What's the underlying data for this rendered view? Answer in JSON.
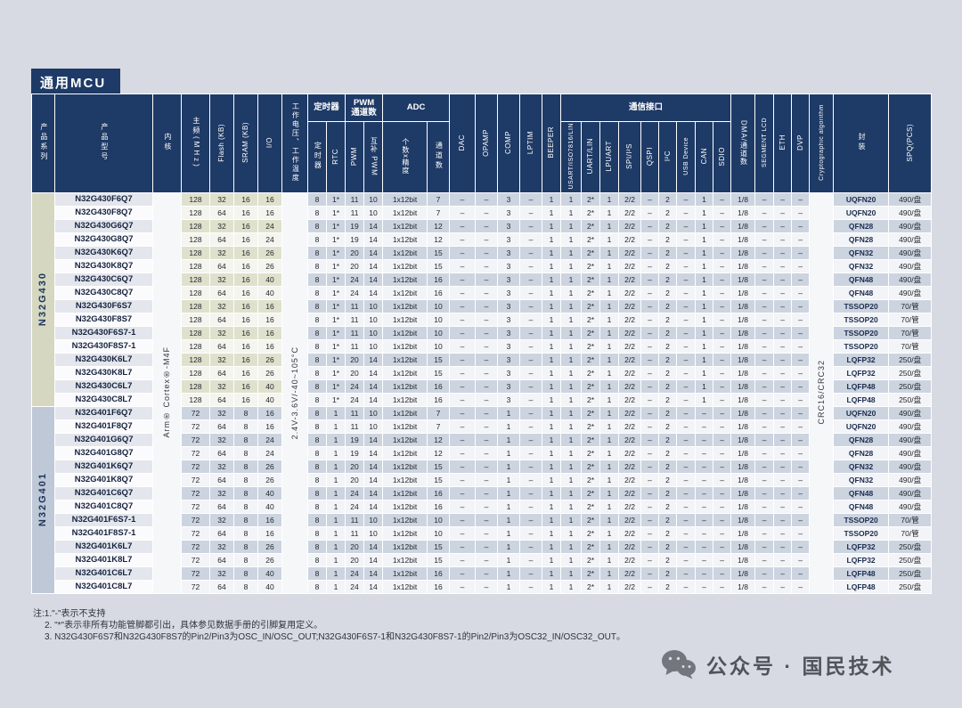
{
  "page": {
    "title": "通用MCU",
    "accent": "#1e3a66",
    "background": "#d7dae3"
  },
  "cols": {
    "series": "产品系列",
    "model": "产品型号",
    "core": "内核",
    "freq": "主频(MHz)",
    "flash": "Flash (KB)",
    "sram": "SRAM (KB)",
    "io": "I/O",
    "voltage": "工作电压、工作温度",
    "timer_group": "定时器",
    "timer": "定时器",
    "rtc": "RTC",
    "pwm_group": "PWM\n通道数",
    "pwm": "PWM",
    "cpwm": "互补 PWM",
    "adc_group": "ADC",
    "adc_res": "个数x精度",
    "adc_ch": "通道数",
    "dac": "DAC",
    "opamp": "OPAMP",
    "comp": "COMP",
    "lptim": "LPTIM",
    "beeper": "BEEPER",
    "comm_group": "通信接口",
    "usart": "USART/ISO7816/LIN",
    "uart": "UART/LIN",
    "lpuart": "LPUART",
    "spi": "SPI/I²S",
    "qspi": "QSPI",
    "i2c": "I²C",
    "usb": "USB Device",
    "can": "CAN",
    "sdio": "SDIO",
    "dma": "DMA/通道数",
    "seg_lcd": "SEGMENT LCD",
    "eth": "ETH",
    "dvp": "DVP",
    "crypto": "Cryptographic algorithm",
    "pkg": "封装",
    "spq": "SPQ(PCS)"
  },
  "merged": {
    "core": "Arm® Cortex®-M4F",
    "voltage": "2.4V-3.6V/-40~105°C",
    "crypto": "CRC16/CRC32"
  },
  "series": [
    {
      "name": "N32G430",
      "common": {
        "freq": "128",
        "sram": "16",
        "timer": "8",
        "rtc": "1*",
        "adc": "1x12bit",
        "dac": "–",
        "opamp": "–",
        "comp": "3",
        "lptim": "–",
        "beeper": "1",
        "usart": "1",
        "uart": "2*",
        "lpuart": "1",
        "spi": "2/2",
        "qspi": "–",
        "i2c": "2",
        "usb": "–",
        "can": "1",
        "sdio": "–",
        "dma": "1/8",
        "lcd": "–",
        "eth": "–",
        "dvp": "–"
      },
      "rows": [
        {
          "model": "N32G430F6Q7",
          "flash": "32",
          "io": "16",
          "pwm": "11",
          "cpwm": "10",
          "adc_ch": "7",
          "pkg": "UQFN20",
          "spq": "490/盘"
        },
        {
          "model": "N32G430F8Q7",
          "flash": "64",
          "io": "16",
          "pwm": "11",
          "cpwm": "10",
          "adc_ch": "7",
          "pkg": "UQFN20",
          "spq": "490/盘"
        },
        {
          "model": "N32G430G6Q7",
          "flash": "32",
          "io": "24",
          "pwm": "19",
          "cpwm": "14",
          "adc_ch": "12",
          "pkg": "QFN28",
          "spq": "490/盘"
        },
        {
          "model": "N32G430G8Q7",
          "flash": "64",
          "io": "24",
          "pwm": "19",
          "cpwm": "14",
          "adc_ch": "12",
          "pkg": "QFN28",
          "spq": "490/盘"
        },
        {
          "model": "N32G430K6Q7",
          "flash": "32",
          "io": "26",
          "pwm": "20",
          "cpwm": "14",
          "adc_ch": "15",
          "pkg": "QFN32",
          "spq": "490/盘"
        },
        {
          "model": "N32G430K8Q7",
          "flash": "64",
          "io": "26",
          "pwm": "20",
          "cpwm": "14",
          "adc_ch": "15",
          "pkg": "QFN32",
          "spq": "490/盘"
        },
        {
          "model": "N32G430C6Q7",
          "flash": "32",
          "io": "40",
          "pwm": "24",
          "cpwm": "14",
          "adc_ch": "16",
          "pkg": "QFN48",
          "spq": "490/盘"
        },
        {
          "model": "N32G430C8Q7",
          "flash": "64",
          "io": "40",
          "pwm": "24",
          "cpwm": "14",
          "adc_ch": "16",
          "pkg": "QFN48",
          "spq": "490/盘"
        },
        {
          "model": "N32G430F6S7",
          "flash": "32",
          "io": "16",
          "pwm": "11",
          "cpwm": "10",
          "adc_ch": "10",
          "pkg": "TSSOP20",
          "spq": "70/管"
        },
        {
          "model": "N32G430F8S7",
          "flash": "64",
          "io": "16",
          "pwm": "11",
          "cpwm": "10",
          "adc_ch": "10",
          "pkg": "TSSOP20",
          "spq": "70/管"
        },
        {
          "model": "N32G430F6S7-1",
          "flash": "32",
          "io": "16",
          "pwm": "11",
          "cpwm": "10",
          "adc_ch": "10",
          "pkg": "TSSOP20",
          "spq": "70/管"
        },
        {
          "model": "N32G430F8S7-1",
          "flash": "64",
          "io": "16",
          "pwm": "11",
          "cpwm": "10",
          "adc_ch": "10",
          "pkg": "TSSOP20",
          "spq": "70/管"
        },
        {
          "model": "N32G430K6L7",
          "flash": "32",
          "io": "26",
          "pwm": "20",
          "cpwm": "14",
          "adc_ch": "15",
          "pkg": "LQFP32",
          "spq": "250/盘"
        },
        {
          "model": "N32G430K8L7",
          "flash": "64",
          "io": "26",
          "pwm": "20",
          "cpwm": "14",
          "adc_ch": "15",
          "pkg": "LQFP32",
          "spq": "250/盘"
        },
        {
          "model": "N32G430C6L7",
          "flash": "32",
          "io": "40",
          "pwm": "24",
          "cpwm": "14",
          "adc_ch": "16",
          "pkg": "LQFP48",
          "spq": "250/盘"
        },
        {
          "model": "N32G430C8L7",
          "flash": "64",
          "io": "40",
          "pwm": "24",
          "cpwm": "14",
          "adc_ch": "16",
          "pkg": "LQFP48",
          "spq": "250/盘"
        }
      ]
    },
    {
      "name": "N32G401",
      "common": {
        "freq": "72",
        "sram": "8",
        "timer": "8",
        "rtc": "1",
        "adc": "1x12bit",
        "dac": "–",
        "opamp": "–",
        "comp": "1",
        "lptim": "–",
        "beeper": "1",
        "usart": "1",
        "uart": "2*",
        "lpuart": "1",
        "spi": "2/2",
        "qspi": "–",
        "i2c": "2",
        "usb": "–",
        "can": "–",
        "sdio": "–",
        "dma": "1/8",
        "lcd": "–",
        "eth": "–",
        "dvp": "–"
      },
      "rows": [
        {
          "model": "N32G401F6Q7",
          "flash": "32",
          "io": "16",
          "pwm": "11",
          "cpwm": "10",
          "adc_ch": "7",
          "pkg": "UQFN20",
          "spq": "490/盘"
        },
        {
          "model": "N32G401F8Q7",
          "flash": "64",
          "io": "16",
          "pwm": "11",
          "cpwm": "10",
          "adc_ch": "7",
          "pkg": "UQFN20",
          "spq": "490/盘"
        },
        {
          "model": "N32G401G6Q7",
          "flash": "32",
          "io": "24",
          "pwm": "19",
          "cpwm": "14",
          "adc_ch": "12",
          "pkg": "QFN28",
          "spq": "490/盘"
        },
        {
          "model": "N32G401G8Q7",
          "flash": "64",
          "io": "24",
          "pwm": "19",
          "cpwm": "14",
          "adc_ch": "12",
          "pkg": "QFN28",
          "spq": "490/盘"
        },
        {
          "model": "N32G401K6Q7",
          "flash": "32",
          "io": "26",
          "pwm": "20",
          "cpwm": "14",
          "adc_ch": "15",
          "pkg": "QFN32",
          "spq": "490/盘"
        },
        {
          "model": "N32G401K8Q7",
          "flash": "64",
          "io": "26",
          "pwm": "20",
          "cpwm": "14",
          "adc_ch": "15",
          "pkg": "QFN32",
          "spq": "490/盘"
        },
        {
          "model": "N32G401C6Q7",
          "flash": "32",
          "io": "40",
          "pwm": "24",
          "cpwm": "14",
          "adc_ch": "16",
          "pkg": "QFN48",
          "spq": "490/盘"
        },
        {
          "model": "N32G401C8Q7",
          "flash": "64",
          "io": "40",
          "pwm": "24",
          "cpwm": "14",
          "adc_ch": "16",
          "pkg": "QFN48",
          "spq": "490/盘"
        },
        {
          "model": "N32G401F6S7-1",
          "flash": "32",
          "io": "16",
          "pwm": "11",
          "cpwm": "10",
          "adc_ch": "10",
          "pkg": "TSSOP20",
          "spq": "70/管"
        },
        {
          "model": "N32G401F8S7-1",
          "flash": "64",
          "io": "16",
          "pwm": "11",
          "cpwm": "10",
          "adc_ch": "10",
          "pkg": "TSSOP20",
          "spq": "70/管"
        },
        {
          "model": "N32G401K6L7",
          "flash": "32",
          "io": "26",
          "pwm": "20",
          "cpwm": "14",
          "adc_ch": "15",
          "pkg": "LQFP32",
          "spq": "250/盘"
        },
        {
          "model": "N32G401K8L7",
          "flash": "64",
          "io": "26",
          "pwm": "20",
          "cpwm": "14",
          "adc_ch": "15",
          "pkg": "LQFP32",
          "spq": "250/盘"
        },
        {
          "model": "N32G401C6L7",
          "flash": "32",
          "io": "40",
          "pwm": "24",
          "cpwm": "14",
          "adc_ch": "16",
          "pkg": "LQFP48",
          "spq": "250/盘"
        },
        {
          "model": "N32G401C8L7",
          "flash": "64",
          "io": "40",
          "pwm": "24",
          "cpwm": "14",
          "adc_ch": "16",
          "pkg": "LQFP48",
          "spq": "250/盘"
        }
      ]
    }
  ],
  "notes": {
    "line1": "注:1.\"-\"表示不支持",
    "line2": "2. \"*\"表示非所有功能管脚都引出，具体参见数据手册的引脚复用定义。",
    "line3": "3. N32G430F6S7和N32G430F8S7的Pin2/Pin3为OSC_IN/OSC_OUT;N32G430F6S7-1和N32G430F8S7-1的Pin2/Pin3为OSC32_IN/OSC32_OUT。"
  },
  "footer": {
    "wechat_label": "公众号 · 国民技术"
  }
}
